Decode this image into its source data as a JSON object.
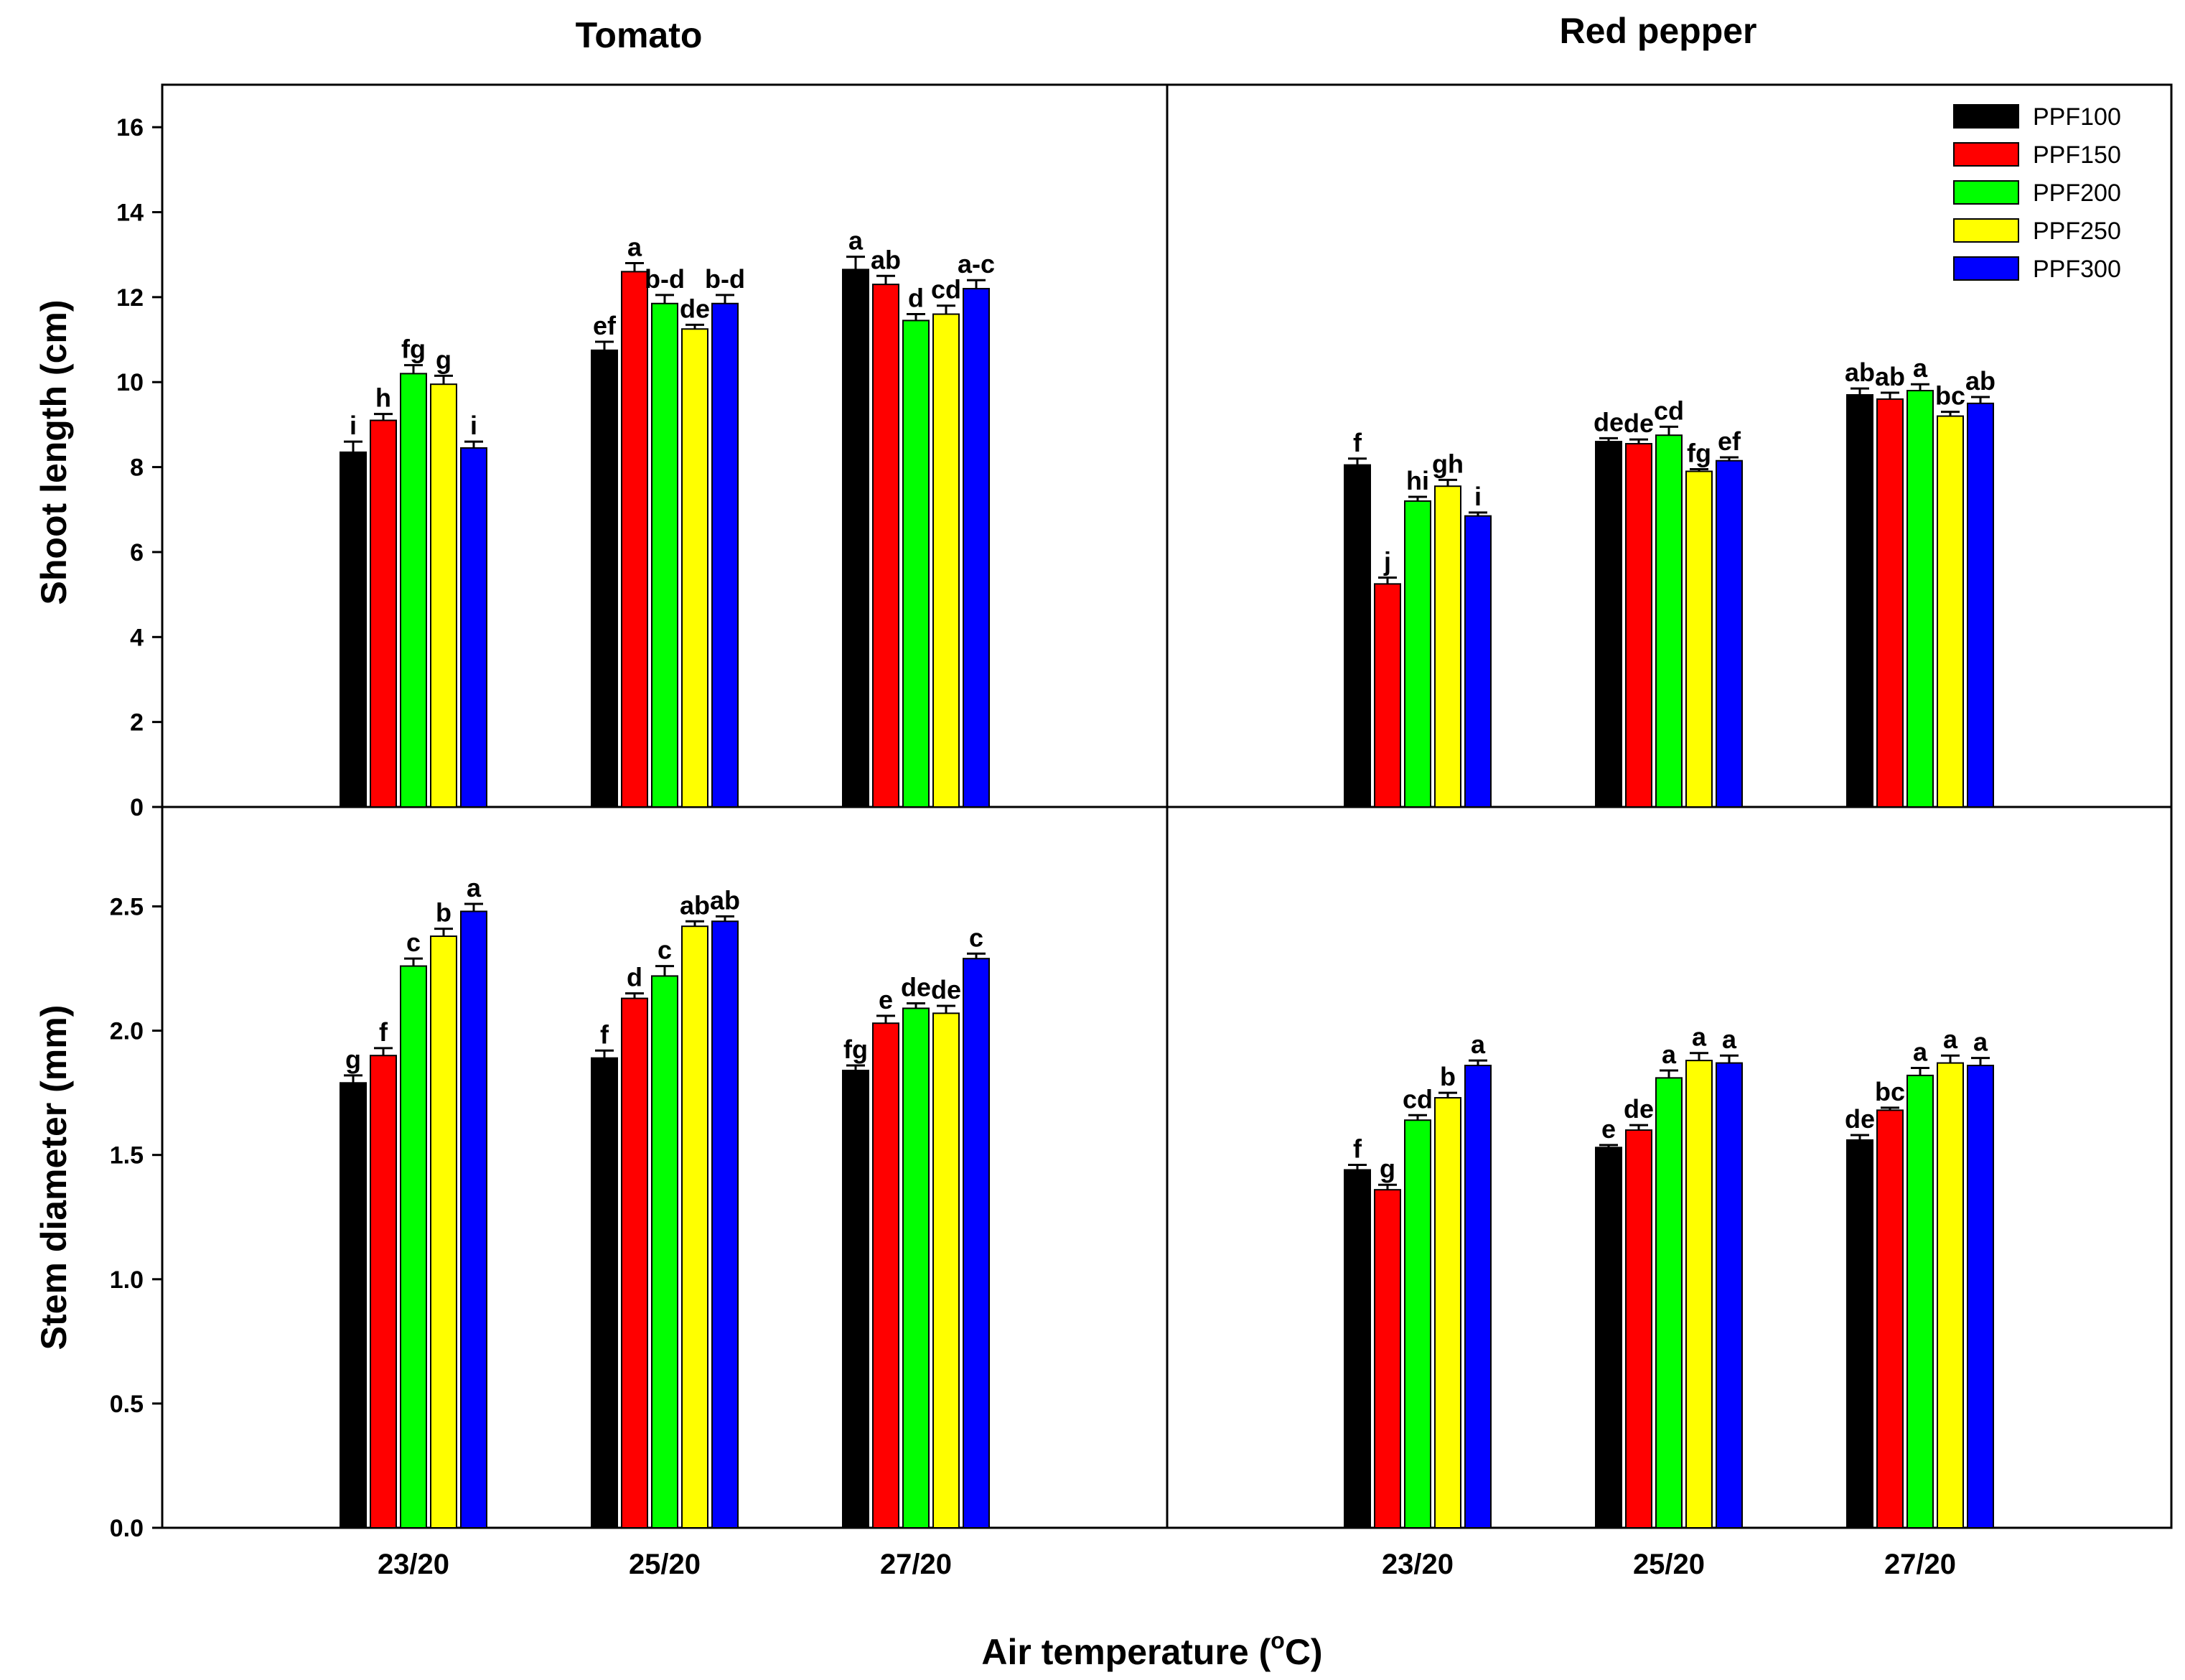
{
  "chart_data": {
    "type": "bar",
    "xlabel": "Air temperature (",
    "xlabel_sup": "o",
    "xlabel_suffix": "C)",
    "categories": [
      "23/20",
      "25/20",
      "27/20"
    ],
    "legend": {
      "placement": "top-right",
      "entries": [
        {
          "name": "PPF100",
          "color": "#000000"
        },
        {
          "name": "PPF150",
          "color": "#ff0000"
        },
        {
          "name": "PPF200",
          "color": "#00ff00"
        },
        {
          "name": "PPF250",
          "color": "#ffff00"
        },
        {
          "name": "PPF300",
          "color": "#0000ff"
        }
      ]
    },
    "crops": [
      {
        "title": "Tomato"
      },
      {
        "title": "Red pepper"
      }
    ],
    "metrics": [
      {
        "ylabel": "Shoot length (cm)",
        "ylim": [
          0,
          17
        ],
        "ticks": [
          0,
          2,
          4,
          6,
          8,
          10,
          12,
          14,
          16
        ],
        "tick_labels": [
          "0",
          "2",
          "4",
          "6",
          "8",
          "10",
          "12",
          "14",
          "16"
        ],
        "data": [
          [
            {
              "values": [
                8.35,
                9.1,
                10.2,
                9.95,
                8.45
              ],
              "errors": [
                0.25,
                0.15,
                0.2,
                0.2,
                0.15
              ],
              "labels": [
                "i",
                "h",
                "fg",
                "g",
                "i"
              ]
            },
            {
              "values": [
                10.75,
                12.6,
                11.85,
                11.25,
                11.85
              ],
              "errors": [
                0.2,
                0.2,
                0.2,
                0.1,
                0.2
              ],
              "labels": [
                "ef",
                "a",
                "b-d",
                "de",
                "b-d"
              ]
            },
            {
              "values": [
                12.65,
                12.3,
                11.45,
                11.6,
                12.2
              ],
              "errors": [
                0.3,
                0.2,
                0.15,
                0.2,
                0.2
              ],
              "labels": [
                "a",
                "ab",
                "d",
                "cd",
                "a-c"
              ]
            }
          ],
          [
            {
              "values": [
                8.05,
                5.25,
                7.2,
                7.55,
                6.85
              ],
              "errors": [
                0.15,
                0.15,
                0.1,
                0.15,
                0.08
              ],
              "labels": [
                "f",
                "j",
                "hi",
                "gh",
                "i"
              ]
            },
            {
              "values": [
                8.6,
                8.55,
                8.75,
                7.9,
                8.15
              ],
              "errors": [
                0.08,
                0.1,
                0.2,
                0.05,
                0.08
              ],
              "labels": [
                "de",
                "de",
                "cd",
                "fg",
                "ef"
              ]
            },
            {
              "values": [
                9.7,
                9.6,
                9.8,
                9.2,
                9.5
              ],
              "errors": [
                0.15,
                0.15,
                0.15,
                0.1,
                0.15
              ],
              "labels": [
                "ab",
                "ab",
                "a",
                "bc",
                "ab"
              ]
            }
          ]
        ]
      },
      {
        "ylabel": "Stem diameter (mm)",
        "ylim": [
          0,
          2.9
        ],
        "ticks": [
          0,
          0.5,
          1.0,
          1.5,
          2.0,
          2.5
        ],
        "tick_labels": [
          "0.0",
          "0.5",
          "1.0",
          "1.5",
          "2.0",
          "2.5"
        ],
        "data": [
          [
            {
              "values": [
                1.79,
                1.9,
                2.26,
                2.38,
                2.48
              ],
              "errors": [
                0.03,
                0.03,
                0.03,
                0.03,
                0.03
              ],
              "labels": [
                "g",
                "f",
                "c",
                "b",
                "a"
              ]
            },
            {
              "values": [
                1.89,
                2.13,
                2.22,
                2.42,
                2.44
              ],
              "errors": [
                0.03,
                0.02,
                0.04,
                0.02,
                0.02
              ],
              "labels": [
                "f",
                "d",
                "c",
                "ab",
                "ab"
              ]
            },
            {
              "values": [
                1.84,
                2.03,
                2.09,
                2.07,
                2.29
              ],
              "errors": [
                0.02,
                0.03,
                0.02,
                0.03,
                0.02
              ],
              "labels": [
                "fg",
                "e",
                "de",
                "de",
                "c"
              ]
            }
          ],
          [
            {
              "values": [
                1.44,
                1.36,
                1.64,
                1.73,
                1.86
              ],
              "errors": [
                0.02,
                0.02,
                0.02,
                0.02,
                0.02
              ],
              "labels": [
                "f",
                "g",
                "cd",
                "b",
                "a"
              ]
            },
            {
              "values": [
                1.53,
                1.6,
                1.81,
                1.88,
                1.87
              ],
              "errors": [
                0.01,
                0.02,
                0.03,
                0.03,
                0.03
              ],
              "labels": [
                "e",
                "de",
                "a",
                "a",
                "a"
              ]
            },
            {
              "values": [
                1.56,
                1.68,
                1.82,
                1.87,
                1.86
              ],
              "errors": [
                0.02,
                0.01,
                0.03,
                0.03,
                0.03
              ],
              "labels": [
                "de",
                "bc",
                "a",
                "a",
                "a"
              ]
            }
          ]
        ]
      }
    ]
  }
}
